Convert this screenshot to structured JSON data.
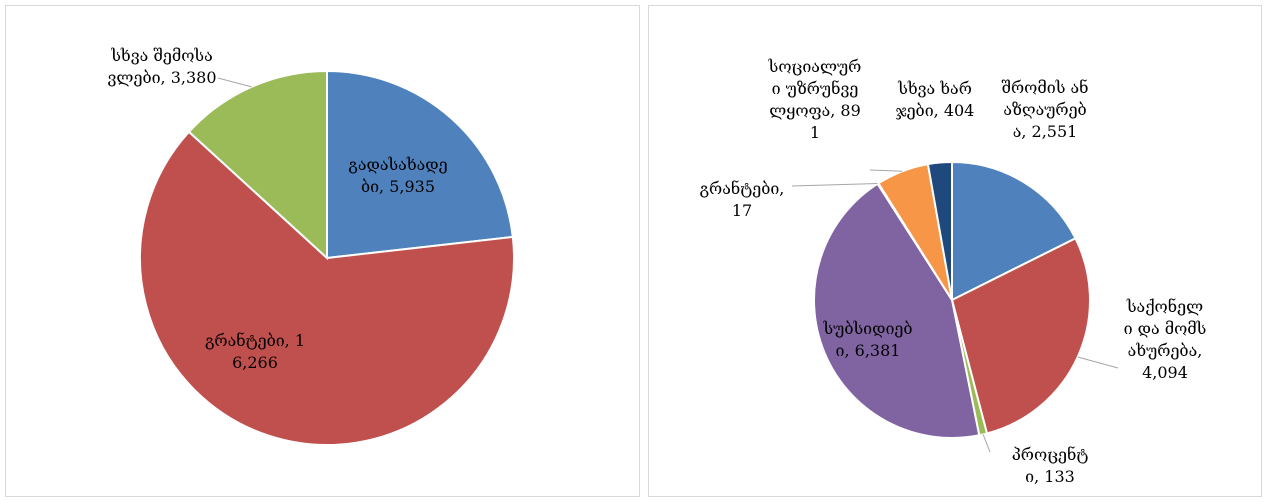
{
  "chart_data": [
    {
      "type": "pie",
      "values": [
        5935,
        16266,
        3380
      ],
      "value_labels": [
        "გადასახადები, 5,935",
        "გრანტები, 16,266",
        "სხვა შემოსავლები, 3,380"
      ],
      "colors": [
        "#4f81bd",
        "#c0504d",
        "#9bbb59"
      ]
    },
    {
      "type": "pie",
      "values": [
        2551,
        4094,
        133,
        6381,
        17,
        891,
        404
      ],
      "value_labels": [
        "შრომის ანაზღაურება, 2,551",
        "საქონელი და მომსახურება, 4,094",
        "პროცენტი, 133",
        "სუბსიდიები, 6,381",
        "გრანტები, 17",
        "სოციალური უზრუნველყოფა, 891",
        "სხვა ხარჯები, 404"
      ],
      "colors": [
        "#4f81bd",
        "#c0504d",
        "#9bbb59",
        "#8064a2",
        "#4bacc6",
        "#f79646",
        "#1f497d"
      ]
    }
  ]
}
